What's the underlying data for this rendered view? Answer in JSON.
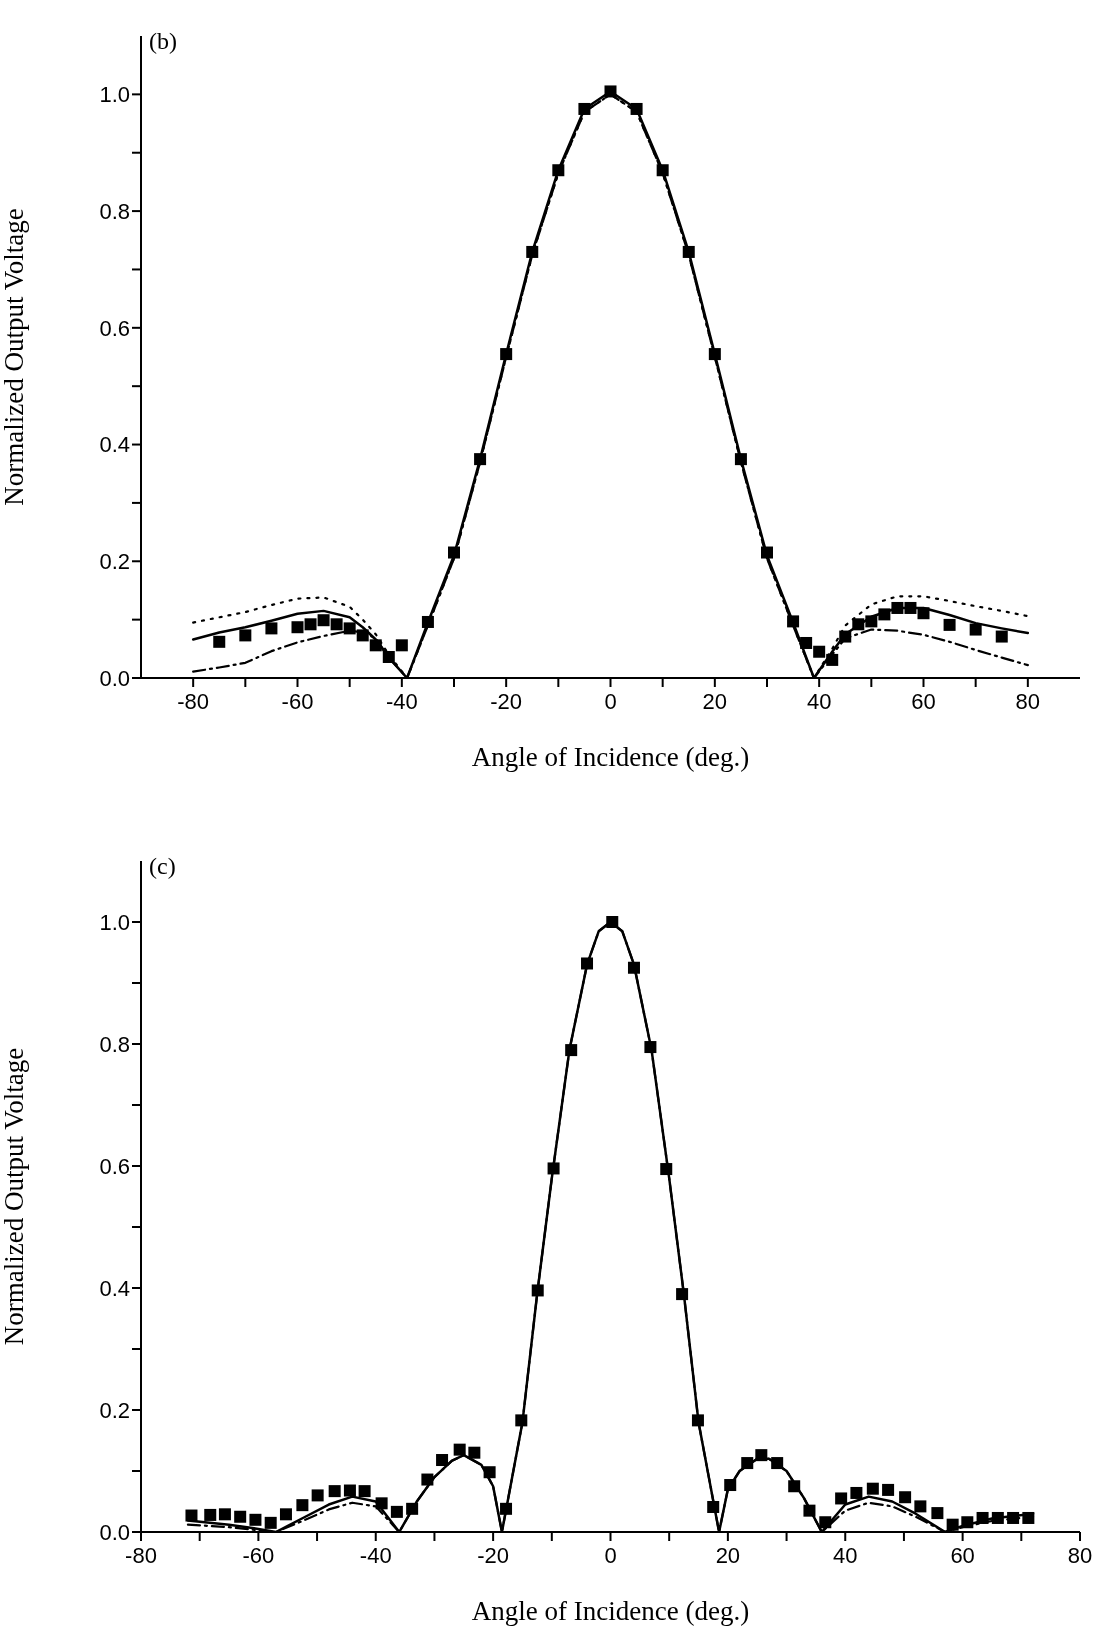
{
  "chart_data": [
    {
      "type": "line",
      "xlabel": "Angle of Incidence (deg.)",
      "ylabel": "Normalized Output Voltage",
      "annotations": [
        "(b)"
      ],
      "xlim": [
        -90,
        90
      ],
      "xticks": [
        -80,
        {
          "value": -70,
          "label": null
        },
        -60,
        {
          "value": -50,
          "label": null
        },
        -40,
        {
          "value": -30,
          "label": null
        },
        -20,
        {
          "value": -10,
          "label": null
        },
        0,
        {
          "value": 10,
          "label": null
        },
        20,
        {
          "value": 30,
          "label": null
        },
        40,
        {
          "value": 50,
          "label": null
        },
        60,
        {
          "value": 70,
          "label": null
        },
        80
      ],
      "ylim": [
        0,
        1.1
      ],
      "yticks": [
        {
          "value": 0,
          "label": "0.0"
        },
        {
          "value": 0.1,
          "label": null
        },
        {
          "value": 0.2,
          "label": "0.2"
        },
        {
          "value": 0.3,
          "label": null
        },
        {
          "value": 0.4,
          "label": "0.4"
        },
        {
          "value": 0.5,
          "label": null
        },
        {
          "value": 0.6,
          "label": "0.6"
        },
        {
          "value": 0.7,
          "label": null
        },
        {
          "value": 0.8,
          "label": "0.8"
        },
        {
          "value": 0.9,
          "label": null
        },
        {
          "value": 1.0,
          "label": "1.0"
        }
      ],
      "legend": false,
      "grid": false,
      "series": [
        {
          "type": "scatter",
          "marker": "square",
          "color": "#000000",
          "x": [
            -75,
            -70,
            -65,
            -60,
            -57.5,
            -55,
            -52.5,
            -50,
            -47.5,
            -45,
            -42.5,
            -40,
            -35,
            -30,
            -25,
            -20,
            -15,
            -10,
            -5,
            0,
            5,
            10,
            15,
            20,
            25,
            30,
            35,
            37.5,
            40,
            42.5,
            45,
            47.5,
            50,
            52.5,
            55,
            57.5,
            60,
            65,
            70,
            75
          ],
          "values": [
            0.062,
            0.073,
            0.085,
            0.087,
            0.092,
            0.099,
            0.092,
            0.085,
            0.073,
            0.056,
            0.036,
            0.056,
            0.096,
            0.215,
            0.375,
            0.555,
            0.73,
            0.87,
            0.975,
            1.005,
            0.975,
            0.87,
            0.73,
            0.555,
            0.375,
            0.215,
            0.097,
            0.06,
            0.045,
            0.031,
            0.071,
            0.092,
            0.097,
            0.109,
            0.12,
            0.12,
            0.111,
            0.091,
            0.083,
            0.071
          ]
        },
        {
          "marker": "none",
          "line_style": "solid",
          "color": "#000000",
          "x": [
            -80,
            -75,
            -70,
            -65,
            -60,
            -55,
            -50,
            -47.5,
            -45,
            -42.5,
            -39,
            -35,
            -30,
            -25,
            -20,
            -15,
            -10,
            -5,
            0,
            5,
            10,
            15,
            20,
            25,
            30,
            35,
            39,
            42.5,
            45,
            50,
            55,
            60,
            65,
            70,
            75,
            80
          ],
          "values": [
            0.066,
            0.078,
            0.087,
            0.098,
            0.11,
            0.115,
            0.104,
            0.087,
            0.066,
            0.035,
            0,
            0.095,
            0.21,
            0.375,
            0.555,
            0.73,
            0.87,
            0.975,
            1.005,
            0.975,
            0.87,
            0.73,
            0.555,
            0.375,
            0.21,
            0.095,
            0,
            0.045,
            0.075,
            0.105,
            0.12,
            0.12,
            0.108,
            0.094,
            0.085,
            0.077
          ]
        },
        {
          "marker": "none",
          "line_style": "dotted",
          "color": "#000000",
          "x": [
            -80,
            -75,
            -70,
            -65,
            -60,
            -55,
            -50,
            -47.5,
            -45,
            -42.5,
            -39,
            -35,
            -30,
            -25,
            -20,
            -15,
            -10,
            -5,
            0,
            5,
            10,
            15,
            20,
            25,
            30,
            35,
            39,
            42.5,
            45,
            50,
            55,
            60,
            65,
            70,
            75,
            80
          ],
          "values": [
            0.095,
            0.104,
            0.113,
            0.125,
            0.136,
            0.138,
            0.122,
            0.1,
            0.075,
            0.04,
            0,
            0.09,
            0.205,
            0.37,
            0.55,
            0.725,
            0.865,
            0.97,
            1.0,
            0.97,
            0.865,
            0.725,
            0.55,
            0.37,
            0.205,
            0.09,
            0,
            0.05,
            0.09,
            0.126,
            0.14,
            0.14,
            0.132,
            0.123,
            0.115,
            0.106
          ]
        },
        {
          "marker": "none",
          "line_style": "dashdot",
          "color": "#000000",
          "x": [
            -80,
            -75,
            -70,
            -65,
            -60,
            -55,
            -50,
            -47.5,
            -45,
            -42.5,
            -39,
            -35,
            -30,
            -25,
            -20,
            -15,
            -10,
            -5,
            0,
            5,
            10,
            15,
            20,
            25,
            30,
            35,
            39,
            42.5,
            45,
            50,
            55,
            60,
            65,
            70,
            75,
            80
          ],
          "values": [
            0.011,
            0.018,
            0.026,
            0.046,
            0.061,
            0.072,
            0.081,
            0.078,
            0.068,
            0.035,
            0,
            0.09,
            0.205,
            0.37,
            0.55,
            0.725,
            0.865,
            0.97,
            1.0,
            0.97,
            0.865,
            0.725,
            0.55,
            0.37,
            0.205,
            0.09,
            0,
            0.04,
            0.068,
            0.083,
            0.081,
            0.074,
            0.062,
            0.048,
            0.035,
            0.022
          ]
        }
      ]
    },
    {
      "type": "line",
      "xlabel": "Angle of Incidence (deg.)",
      "ylabel": "Normalized Output Voltage",
      "annotations": [
        "(c)"
      ],
      "xlim": [
        -80,
        80
      ],
      "xticks": [
        -80,
        {
          "value": -70,
          "label": null
        },
        -60,
        {
          "value": -50,
          "label": null
        },
        -40,
        {
          "value": -30,
          "label": null
        },
        -20,
        {
          "value": -10,
          "label": null
        },
        0,
        {
          "value": 10,
          "label": null
        },
        20,
        {
          "value": 30,
          "label": null
        },
        40,
        {
          "value": 50,
          "label": null
        },
        60,
        {
          "value": 70,
          "label": null
        },
        80
      ],
      "ylim": [
        0,
        1.1
      ],
      "yticks": [
        {
          "value": 0,
          "label": "0.0"
        },
        {
          "value": 0.1,
          "label": null
        },
        {
          "value": 0.2,
          "label": "0.2"
        },
        {
          "value": 0.3,
          "label": null
        },
        {
          "value": 0.4,
          "label": "0.4"
        },
        {
          "value": 0.5,
          "label": null
        },
        {
          "value": 0.6,
          "label": "0.6"
        },
        {
          "value": 0.7,
          "label": null
        },
        {
          "value": 0.8,
          "label": "0.8"
        },
        {
          "value": 0.9,
          "label": null
        },
        {
          "value": 1.0,
          "label": "1.0"
        }
      ],
      "legend": false,
      "grid": false,
      "series": [
        {
          "type": "scatter",
          "marker": "square",
          "color": "#000000",
          "x": [
            -71.4,
            -68.2,
            -65.7,
            -63.1,
            -60.5,
            -57.9,
            -55.3,
            -52.5,
            -49.9,
            -47.0,
            -44.4,
            -41.9,
            -39.0,
            -36.4,
            -33.8,
            -31.2,
            -28.7,
            -25.7,
            -23.2,
            -20.6,
            -17.8,
            -15.2,
            -12.4,
            -9.7,
            -6.7,
            -4.0,
            0.3,
            4.0,
            6.8,
            9.5,
            12.2,
            14.9,
            17.5,
            20.4,
            23.3,
            25.7,
            28.4,
            31.3,
            33.9,
            36.6,
            39.3,
            41.9,
            44.7,
            47.3,
            50.2,
            52.8,
            55.7,
            58.3,
            60.8,
            63.4,
            66.0,
            68.6,
            71.2
          ],
          "values": [
            0.027,
            0.028,
            0.029,
            0.025,
            0.02,
            0.015,
            0.029,
            0.044,
            0.06,
            0.067,
            0.068,
            0.067,
            0.047,
            0.033,
            0.038,
            0.086,
            0.118,
            0.135,
            0.13,
            0.098,
            0.038,
            0.183,
            0.396,
            0.596,
            0.79,
            0.932,
            1.0,
            0.925,
            0.795,
            0.595,
            0.39,
            0.183,
            0.041,
            0.077,
            0.113,
            0.126,
            0.113,
            0.075,
            0.035,
            0.016,
            0.055,
            0.064,
            0.071,
            0.069,
            0.057,
            0.042,
            0.031,
            0.012,
            0.016,
            0.023,
            0.023,
            0.023,
            0.023
          ]
        },
        {
          "marker": "none",
          "line_style": "solid",
          "color": "#000000",
          "x": [
            -72,
            -65,
            -60,
            -57,
            -52,
            -48,
            -44,
            -40,
            -36,
            -33,
            -30,
            -27,
            -25,
            -22,
            -20,
            -18.5,
            -15,
            -12.5,
            -10,
            -7,
            -4,
            -2,
            0,
            2,
            4,
            7,
            10,
            12.5,
            15,
            18.5,
            20,
            22,
            25,
            27,
            30,
            33,
            36,
            40,
            44,
            48,
            52,
            57,
            60,
            65,
            72
          ],
          "values": [
            0.019,
            0.012,
            0.005,
            0,
            0.025,
            0.045,
            0.058,
            0.05,
            0,
            0.05,
            0.09,
            0.117,
            0.126,
            0.11,
            0.075,
            0,
            0.18,
            0.39,
            0.58,
            0.79,
            0.93,
            0.985,
            1.0,
            0.985,
            0.93,
            0.79,
            0.58,
            0.39,
            0.18,
            0,
            0.07,
            0.1,
            0.12,
            0.12,
            0.1,
            0.055,
            0,
            0.045,
            0.058,
            0.05,
            0.03,
            0,
            0.01,
            0.022,
            0.03
          ]
        },
        {
          "marker": "none",
          "line_style": "dashdot",
          "color": "#000000",
          "x": [
            -72,
            -65,
            -60,
            -57,
            -52,
            -48,
            -44,
            -40,
            -36,
            -33,
            -30,
            -27,
            -25,
            -22,
            -20,
            -18.5,
            -15,
            -12.5,
            -10,
            -7,
            -4,
            -2,
            0,
            2,
            4,
            7,
            10,
            12.5,
            15,
            18.5,
            20,
            22,
            25,
            27,
            30,
            33,
            36,
            40,
            44,
            48,
            52,
            57,
            60,
            65,
            72
          ],
          "values": [
            0.012,
            0.008,
            0.003,
            0,
            0.02,
            0.037,
            0.048,
            0.042,
            0,
            0.05,
            0.09,
            0.117,
            0.126,
            0.11,
            0.075,
            0,
            0.18,
            0.39,
            0.58,
            0.79,
            0.93,
            0.985,
            1.0,
            0.985,
            0.93,
            0.79,
            0.58,
            0.39,
            0.18,
            0,
            0.07,
            0.1,
            0.12,
            0.12,
            0.1,
            0.055,
            0,
            0.035,
            0.048,
            0.042,
            0.025,
            0,
            0.008,
            0.018,
            0.025
          ]
        }
      ]
    }
  ]
}
